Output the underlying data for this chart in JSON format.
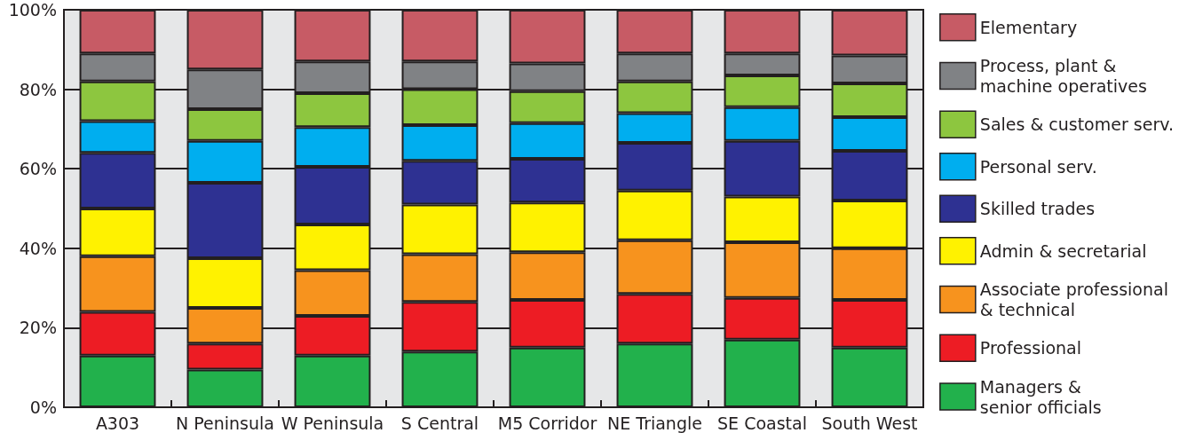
{
  "chart_data": {
    "type": "bar",
    "stacked": true,
    "categories": [
      "A303",
      "N Peninsula",
      "W Peninsula",
      "S Central",
      "M5 Corridor",
      "NE Triangle",
      "SE Coastal",
      "South West"
    ],
    "series": [
      {
        "name": "Managers &\nsenior officials",
        "color": "#22b14c",
        "values": [
          13,
          9.5,
          13,
          14,
          15,
          16,
          17,
          15
        ]
      },
      {
        "name": "Professional",
        "color": "#ed1c24",
        "values": [
          11,
          6.5,
          10,
          12.5,
          12,
          12.5,
          10.5,
          12
        ]
      },
      {
        "name": "Associate professional\n& technical",
        "color": "#f7931e",
        "values": [
          14,
          9,
          11.5,
          12,
          12,
          13.5,
          14,
          13
        ]
      },
      {
        "name": "Admin & secretarial",
        "color": "#fff200",
        "values": [
          12,
          12.5,
          11.5,
          12.5,
          12.5,
          12.5,
          11.5,
          12
        ]
      },
      {
        "name": "Skilled trades",
        "color": "#2e3192",
        "values": [
          14,
          19,
          14.5,
          11,
          11,
          12,
          14,
          12.5
        ]
      },
      {
        "name": "Personal serv.",
        "color": "#00aeef",
        "values": [
          8,
          10.5,
          10,
          9,
          9,
          7.5,
          8.5,
          8.5
        ]
      },
      {
        "name": "Sales & customer serv.",
        "color": "#8dc63f",
        "values": [
          10,
          8,
          8.5,
          9,
          8,
          8,
          8,
          8.5
        ]
      },
      {
        "name": "Process, plant &\nmachine operatives",
        "color": "#808285",
        "values": [
          7,
          10,
          8,
          7,
          7,
          7,
          5.5,
          7
        ]
      },
      {
        "name": "Elementary",
        "color": "#c75b65",
        "values": [
          11,
          15,
          13,
          13,
          13.5,
          11,
          11,
          11.5
        ]
      }
    ],
    "ylim": [
      0,
      100
    ],
    "yticks": [
      {
        "value": 0,
        "label": "0%"
      },
      {
        "value": 20,
        "label": "20%"
      },
      {
        "value": 40,
        "label": "40%"
      },
      {
        "value": 60,
        "label": "60%"
      },
      {
        "value": 80,
        "label": "80%"
      },
      {
        "value": 100,
        "label": "100%"
      }
    ],
    "grid": "y",
    "legend": "right"
  }
}
